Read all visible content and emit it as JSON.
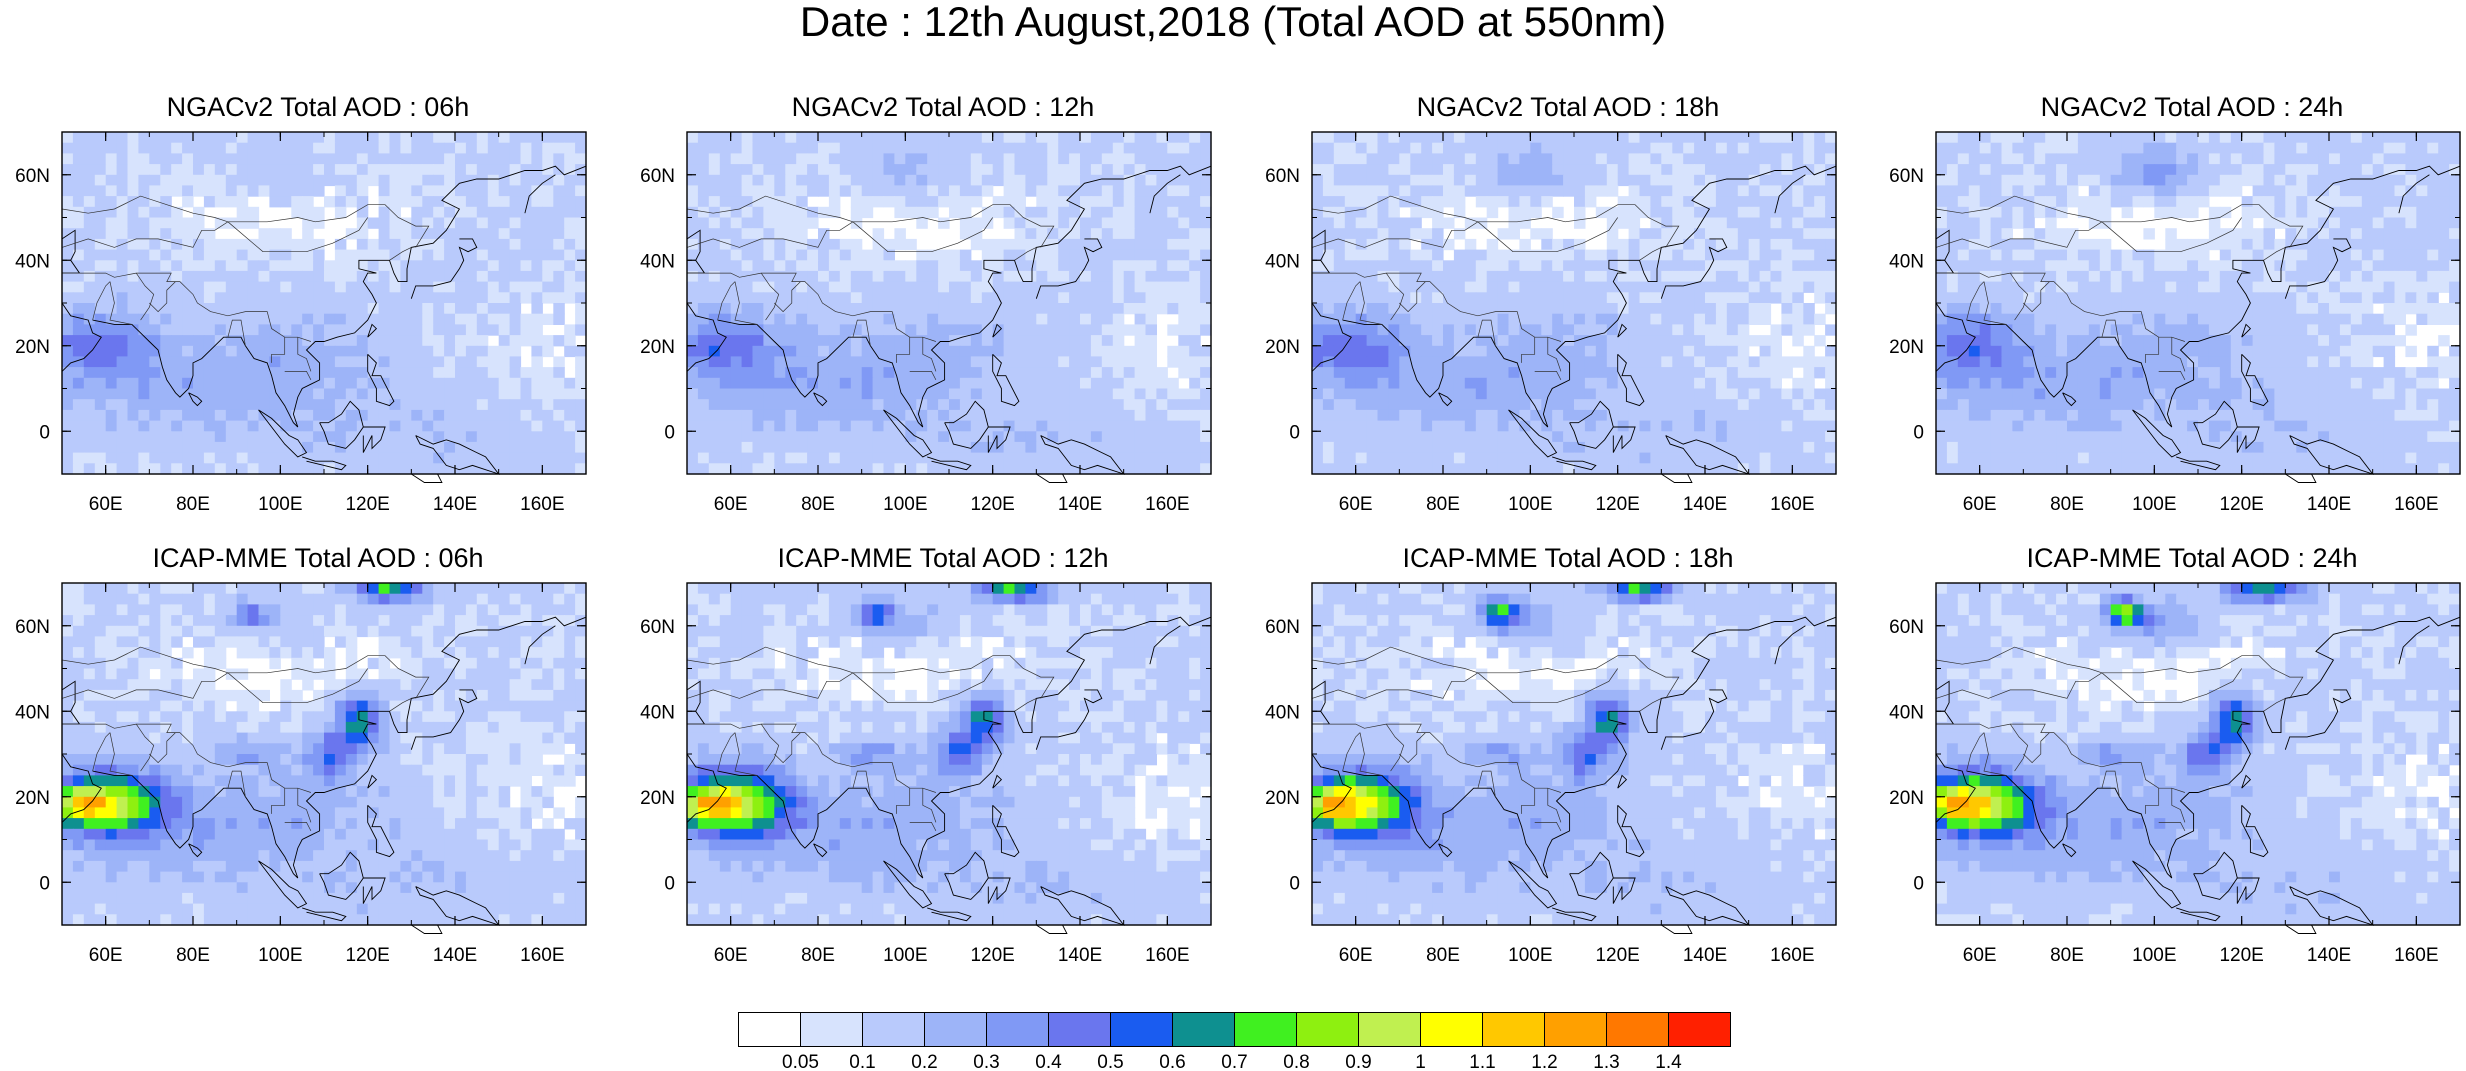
{
  "title": "Date : 12th August,2018 (Total AOD at 550nm)",
  "lat_labels": [
    "60N",
    "40N",
    "20N",
    "0"
  ],
  "lat_values": [
    60,
    40,
    20,
    0
  ],
  "lon_labels": [
    "60E",
    "80E",
    "100E",
    "120E",
    "140E",
    "160E"
  ],
  "lon_values": [
    60,
    80,
    100,
    120,
    140,
    160
  ],
  "map_extent": {
    "lon": [
      50,
      170
    ],
    "lat": [
      -10,
      70
    ]
  },
  "panels": [
    {
      "title": "NGACv2 Total AOD : 06h",
      "model": "NGACv2",
      "hour": "06h"
    },
    {
      "title": "NGACv2 Total AOD : 12h",
      "model": "NGACv2",
      "hour": "12h"
    },
    {
      "title": "NGACv2 Total AOD : 18h",
      "model": "NGACv2",
      "hour": "18h"
    },
    {
      "title": "NGACv2 Total AOD : 24h",
      "model": "NGACv2",
      "hour": "24h"
    },
    {
      "title": "ICAP-MME Total AOD : 06h",
      "model": "ICAP-MME",
      "hour": "06h"
    },
    {
      "title": "ICAP-MME Total AOD : 12h",
      "model": "ICAP-MME",
      "hour": "12h"
    },
    {
      "title": "ICAP-MME Total AOD : 18h",
      "model": "ICAP-MME",
      "hour": "18h"
    },
    {
      "title": "ICAP-MME Total AOD : 24h",
      "model": "ICAP-MME",
      "hour": "24h"
    }
  ],
  "colorbar": {
    "labels": [
      "0.05",
      "0.1",
      "0.2",
      "0.3",
      "0.4",
      "0.5",
      "0.6",
      "0.7",
      "0.8",
      "0.9",
      "1",
      "1.1",
      "1.2",
      "1.3",
      "1.4"
    ],
    "colors": [
      "#ffffff",
      "#d7e3fd",
      "#b9cafc",
      "#9db4f8",
      "#8099f5",
      "#6a76ee",
      "#1a5cf0",
      "#0e9090",
      "#40f020",
      "#8ef010",
      "#c0f050",
      "#ffff00",
      "#ffc800",
      "#ffa000",
      "#ff7800",
      "#ff2000"
    ]
  }
}
